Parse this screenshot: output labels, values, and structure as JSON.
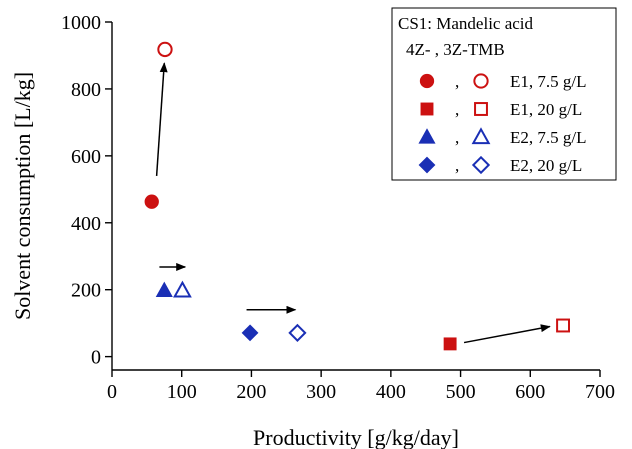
{
  "chart_data": {
    "type": "scatter",
    "title": "",
    "xlabel": "Productivity [g/kg/day]",
    "ylabel": "Solvent consumption [L/kg]",
    "xlim": [
      0,
      700
    ],
    "ylim": [
      -40,
      1000
    ],
    "xticks": [
      0,
      100,
      200,
      300,
      400,
      500,
      600,
      700
    ],
    "yticks": [
      0,
      200,
      400,
      600,
      800,
      1000
    ],
    "grid": false,
    "legend": {
      "placement": "top-right",
      "title": "CS1: Mandelic acid",
      "subtitle": "4Z- ,  3Z-TMB",
      "entries": [
        {
          "label": "E1, 7.5 g/L",
          "marker": "circle",
          "color": "#cc1111",
          "sep": ","
        },
        {
          "label": "E1, 20 g/L",
          "marker": "square",
          "color": "#cc1111",
          "sep": ","
        },
        {
          "label": "E2, 7.5 g/L",
          "marker": "triangle",
          "color": "#1a2fb5",
          "sep": ","
        },
        {
          "label": "E2, 20 g/L",
          "marker": "diamond",
          "color": "#1a2fb5",
          "sep": ","
        }
      ]
    },
    "series": [
      {
        "marker": "circle",
        "color": "#cc1111",
        "points": [
          {
            "x": 57,
            "y": 463,
            "filled": true
          },
          {
            "x": 76,
            "y": 918,
            "filled": false
          }
        ]
      },
      {
        "marker": "square",
        "color": "#cc1111",
        "points": [
          {
            "x": 485,
            "y": 38,
            "filled": true
          },
          {
            "x": 647,
            "y": 93,
            "filled": false
          }
        ]
      },
      {
        "marker": "triangle",
        "color": "#1a2fb5",
        "points": [
          {
            "x": 75,
            "y": 198,
            "filled": true
          },
          {
            "x": 101,
            "y": 198,
            "filled": false
          }
        ]
      },
      {
        "marker": "diamond",
        "color": "#1a2fb5",
        "points": [
          {
            "x": 198,
            "y": 71,
            "filled": true
          },
          {
            "x": 266,
            "y": 71,
            "filled": false
          }
        ]
      }
    ],
    "annotations": {
      "arrows": [
        {
          "from": [
            64,
            540
          ],
          "to": [
            75,
            877
          ]
        },
        {
          "from": [
            68,
            268
          ],
          "to": [
            105,
            268
          ]
        },
        {
          "from": [
            193,
            140
          ],
          "to": [
            263,
            140
          ]
        },
        {
          "from": [
            505,
            42
          ],
          "to": [
            628,
            90
          ]
        }
      ]
    }
  }
}
